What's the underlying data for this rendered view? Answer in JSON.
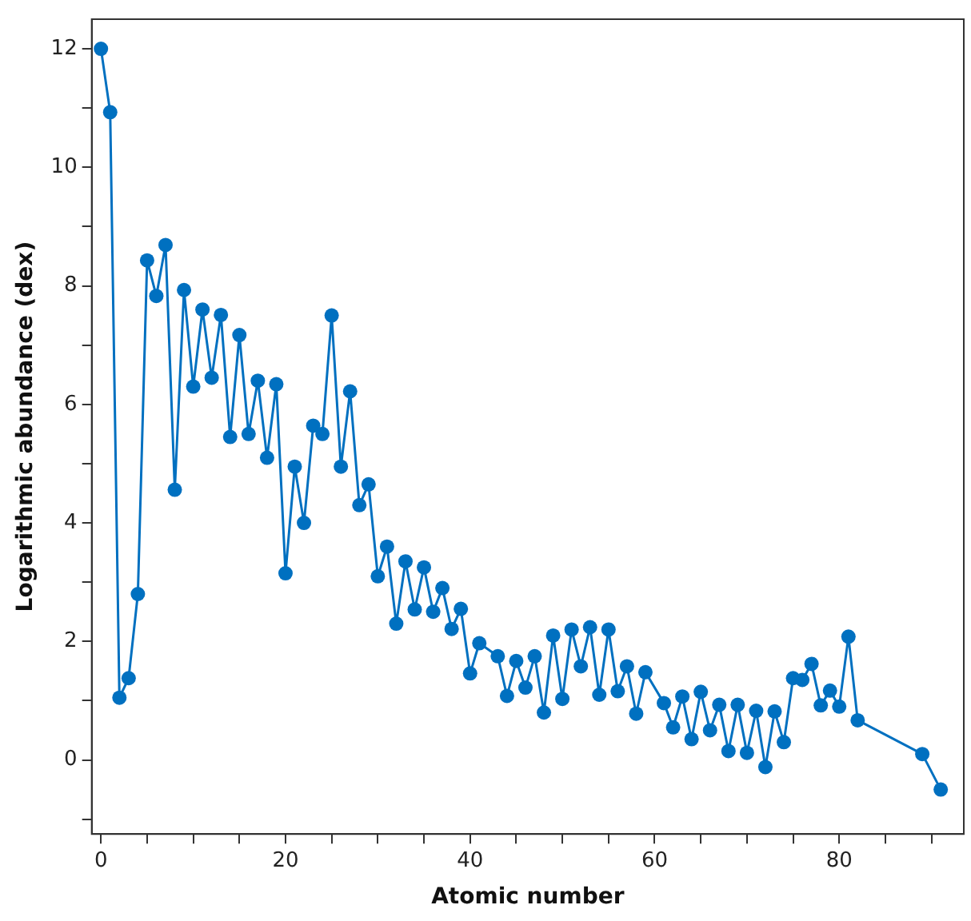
{
  "chart_data": {
    "type": "line",
    "xlabel": "Atomic number",
    "ylabel": "Logarithmic abundance (dex)",
    "x": [
      0,
      1,
      2,
      3,
      4,
      5,
      6,
      7,
      8,
      9,
      10,
      11,
      12,
      13,
      14,
      15,
      16,
      17,
      18,
      19,
      20,
      21,
      22,
      23,
      24,
      25,
      26,
      27,
      28,
      29,
      30,
      31,
      32,
      33,
      34,
      35,
      36,
      37,
      38,
      39,
      40,
      41,
      43,
      44,
      45,
      46,
      47,
      48,
      49,
      50,
      51,
      52,
      53,
      54,
      55,
      56,
      57,
      58,
      59,
      61,
      62,
      63,
      64,
      65,
      66,
      67,
      68,
      69,
      70,
      71,
      72,
      73,
      74,
      75,
      76,
      77,
      78,
      79,
      80,
      81,
      82,
      89,
      91
    ],
    "series": [
      {
        "color": "#0070c0",
        "values": [
          12,
          10.93,
          1.05,
          1.38,
          2.8,
          8.43,
          7.83,
          8.69,
          4.56,
          7.93,
          6.3,
          7.6,
          6.45,
          7.51,
          5.45,
          7.17,
          5.5,
          6.4,
          5.1,
          6.34,
          3.15,
          4.95,
          4.0,
          5.64,
          5.5,
          7.5,
          4.95,
          6.22,
          4.3,
          4.65,
          3.1,
          3.6,
          2.3,
          3.35,
          2.54,
          3.25,
          2.5,
          2.9,
          2.21,
          2.55,
          1.46,
          1.97,
          1.75,
          1.08,
          1.67,
          1.22,
          1.75,
          0.8,
          2.1,
          1.03,
          2.2,
          1.58,
          2.24,
          1.1,
          2.2,
          1.16,
          1.58,
          0.78,
          1.48,
          0.96,
          0.55,
          1.07,
          0.35,
          1.15,
          0.5,
          0.93,
          0.15,
          0.93,
          0.12,
          0.83,
          -0.12,
          0.82,
          0.3,
          1.38,
          1.35,
          1.62,
          0.92,
          1.17,
          0.9,
          2.08,
          0.67,
          0.1,
          -0.5
        ]
      }
    ],
    "xlim": [
      -1,
      93.5
    ],
    "xticks": [
      0,
      {
        "value": 5,
        "label": null
      },
      {
        "value": 10,
        "label": null
      },
      {
        "value": 15,
        "label": null
      },
      20,
      {
        "value": 25,
        "label": null
      },
      {
        "value": 30,
        "label": null
      },
      {
        "value": 35,
        "label": null
      },
      40,
      {
        "value": 45,
        "label": null
      },
      {
        "value": 50,
        "label": null
      },
      {
        "value": 55,
        "label": null
      },
      60,
      {
        "value": 65,
        "label": null
      },
      {
        "value": 70,
        "label": null
      },
      {
        "value": 75,
        "label": null
      },
      80,
      {
        "value": 85,
        "label": null
      },
      {
        "value": 90,
        "label": null
      }
    ],
    "ylim": [
      -1.25,
      12.5
    ],
    "yticks": [
      {
        "value": -1,
        "label": null
      },
      0,
      {
        "value": 1,
        "label": null
      },
      2,
      {
        "value": 3,
        "label": null
      },
      4,
      {
        "value": 5,
        "label": null
      },
      6,
      {
        "value": 7,
        "label": null
      },
      8,
      {
        "value": 9,
        "label": null
      },
      10,
      {
        "value": 11,
        "label": null
      },
      12
    ],
    "marker": "circle",
    "line_style": "solid",
    "grid": false,
    "legend": false
  }
}
